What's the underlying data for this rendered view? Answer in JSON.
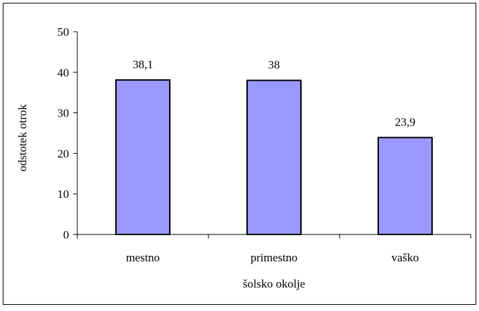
{
  "chart_data": {
    "type": "bar",
    "categories": [
      "mestno",
      "primestno",
      "vaško"
    ],
    "values": [
      38.1,
      38,
      23.9
    ],
    "data_labels": [
      "38,1",
      "38",
      "23,9"
    ],
    "title": "",
    "xlabel": "šolsko okolje",
    "ylabel": "odstotek otrok",
    "ylim": [
      0,
      50
    ],
    "yticks": [
      0,
      10,
      20,
      30,
      40,
      50
    ],
    "grid": false,
    "legend": "none",
    "bar_color": "#9999ff",
    "bar_outline": "#000000"
  }
}
